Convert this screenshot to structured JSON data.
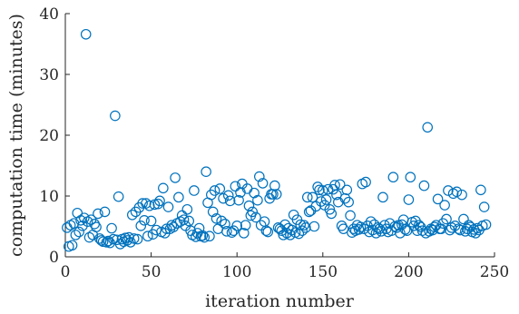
{
  "chart_data": {
    "type": "scatter",
    "title": "",
    "xlabel": "iteration number",
    "ylabel": "computation time (minutes)",
    "xlim": [
      0,
      250
    ],
    "ylim": [
      0,
      40
    ],
    "xticks": [
      0,
      50,
      100,
      150,
      200,
      250
    ],
    "yticks": [
      0,
      10,
      20,
      30,
      40
    ],
    "grid": false,
    "legend": "none",
    "marker": "open-circle",
    "color": "#0072BD",
    "series": [
      {
        "x": [
          1,
          2,
          3,
          4,
          5,
          6,
          7,
          8,
          9,
          10,
          11,
          12,
          13,
          14,
          15,
          16,
          17,
          18,
          19,
          20,
          21,
          22,
          23,
          24,
          25,
          26,
          27,
          28,
          29,
          30,
          31,
          32,
          33,
          34,
          35,
          36,
          37,
          38,
          39,
          40,
          41,
          42,
          43,
          44,
          45,
          46,
          47,
          48,
          49,
          50,
          51,
          52,
          53,
          54,
          55,
          56,
          57,
          58,
          59,
          60,
          61,
          62,
          63,
          64,
          65,
          66,
          67,
          68,
          69,
          70,
          71,
          72,
          73,
          74,
          75,
          76,
          77,
          78,
          79,
          80,
          81,
          82,
          83,
          84,
          85,
          86,
          87,
          88,
          89,
          90,
          91,
          92,
          93,
          94,
          95,
          96,
          97,
          98,
          99,
          100,
          101,
          102,
          103,
          104,
          105,
          106,
          107,
          108,
          109,
          110,
          111,
          112,
          113,
          114,
          115,
          116,
          117,
          118,
          119,
          120,
          121,
          122,
          123,
          124,
          125,
          126,
          127,
          128,
          129,
          130,
          131,
          132,
          133,
          134,
          135,
          136,
          137,
          138,
          139,
          140,
          141,
          142,
          143,
          144,
          145,
          146,
          147,
          148,
          149,
          150,
          151,
          152,
          153,
          154,
          155,
          156,
          157,
          158,
          159,
          160,
          161,
          162,
          163,
          164,
          165,
          166,
          167,
          168,
          169,
          170,
          171,
          172,
          173,
          174,
          175,
          176,
          177,
          178,
          179,
          180,
          181,
          182,
          183,
          184,
          185,
          186,
          187,
          188,
          189,
          190,
          191,
          192,
          193,
          194,
          195,
          196,
          197,
          198,
          199,
          200,
          201,
          202,
          203,
          204,
          205,
          206,
          207,
          208,
          209,
          210,
          211,
          212,
          213,
          214,
          215,
          216,
          217,
          218,
          219,
          220,
          221,
          222,
          223,
          224,
          225,
          226,
          227,
          228,
          229,
          230,
          231,
          232,
          233,
          234,
          235,
          236,
          237,
          238,
          239,
          240,
          241,
          242,
          243,
          244,
          245
        ],
        "y": [
          4.8,
          1.7,
          5.2,
          1.9,
          5.5,
          3.6,
          7.2,
          4.1,
          6.0,
          5.1,
          6.4,
          36.6,
          5.8,
          3.2,
          6.1,
          3.6,
          5.4,
          4.9,
          7.1,
          3.0,
          2.7,
          2.5,
          7.4,
          2.4,
          2.6,
          2.3,
          4.7,
          2.9,
          23.2,
          2.8,
          9.9,
          2.1,
          2.9,
          2.5,
          3.1,
          2.7,
          3.2,
          2.4,
          6.9,
          3.0,
          7.4,
          2.9,
          8.1,
          5.1,
          8.8,
          6.0,
          8.8,
          3.4,
          8.4,
          5.9,
          3.7,
          8.6,
          4.4,
          8.7,
          9.2,
          4.1,
          11.3,
          3.9,
          4.6,
          8.2,
          4.6,
          5.2,
          4.9,
          13.0,
          5.5,
          9.8,
          5.8,
          6.8,
          6.1,
          5.1,
          7.8,
          5.9,
          4.3,
          3.6,
          10.9,
          3.3,
          3.9,
          4.7,
          3.4,
          3.5,
          3.2,
          14.0,
          8.9,
          3.4,
          10.2,
          7.4,
          10.9,
          6.3,
          4.6,
          11.2,
          5.9,
          9.6,
          5.4,
          4.2,
          10.1,
          9.2,
          4.0,
          4.3,
          11.6,
          5.1,
          9.3,
          10.6,
          12.0,
          3.9,
          5.2,
          11.2,
          8.4,
          6.8,
          7.4,
          10.5,
          6.5,
          9.3,
          13.2,
          5.2,
          12.1,
          5.8,
          4.3,
          4.1,
          9.6,
          10.3,
          10.3,
          11.7,
          10.3,
          4.8,
          4.6,
          4.3,
          3.6,
          5.3,
          3.9,
          4.7,
          3.6,
          4.4,
          6.9,
          4.0,
          6.1,
          3.8,
          5.3,
          4.3,
          5.2,
          4.8,
          9.8,
          7.4,
          7.6,
          9.8,
          5.0,
          8.3,
          11.5,
          11.0,
          9.1,
          10.9,
          8.5,
          9.4,
          11.1,
          7.8,
          7.1,
          11.1,
          11.8,
          10.2,
          9.0,
          11.9,
          5.1,
          4.6,
          9.6,
          11.0,
          9.0,
          6.8,
          4.0,
          4.6,
          4.3,
          5.2,
          4.5,
          4.9,
          12.0,
          4.6,
          12.3,
          5.1,
          4.1,
          5.8,
          4.4,
          5.3,
          3.9,
          4.8,
          4.6,
          4.2,
          9.8,
          5.2,
          4.6,
          4.1,
          5.5,
          4.3,
          13.1,
          5.0,
          4.8,
          5.2,
          3.9,
          5.3,
          6.1,
          4.5,
          4.3,
          9.4,
          13.1,
          5.7,
          5.1,
          5.9,
          4.3,
          5.2,
          4.9,
          4.3,
          11.7,
          3.9,
          21.3,
          4.2,
          4.6,
          4.4,
          4.9,
          5.2,
          9.5,
          4.6,
          4.6,
          5.5,
          8.5,
          6.2,
          10.9,
          4.4,
          4.8,
          10.4,
          5.1,
          10.7,
          4.6,
          4.4,
          10.2,
          6.2,
          4.2,
          4.6,
          5.2,
          4.9,
          4.1,
          4.5,
          3.9,
          4.7,
          4.4,
          11.0,
          5.1,
          8.2,
          5.3
        ]
      }
    ]
  }
}
